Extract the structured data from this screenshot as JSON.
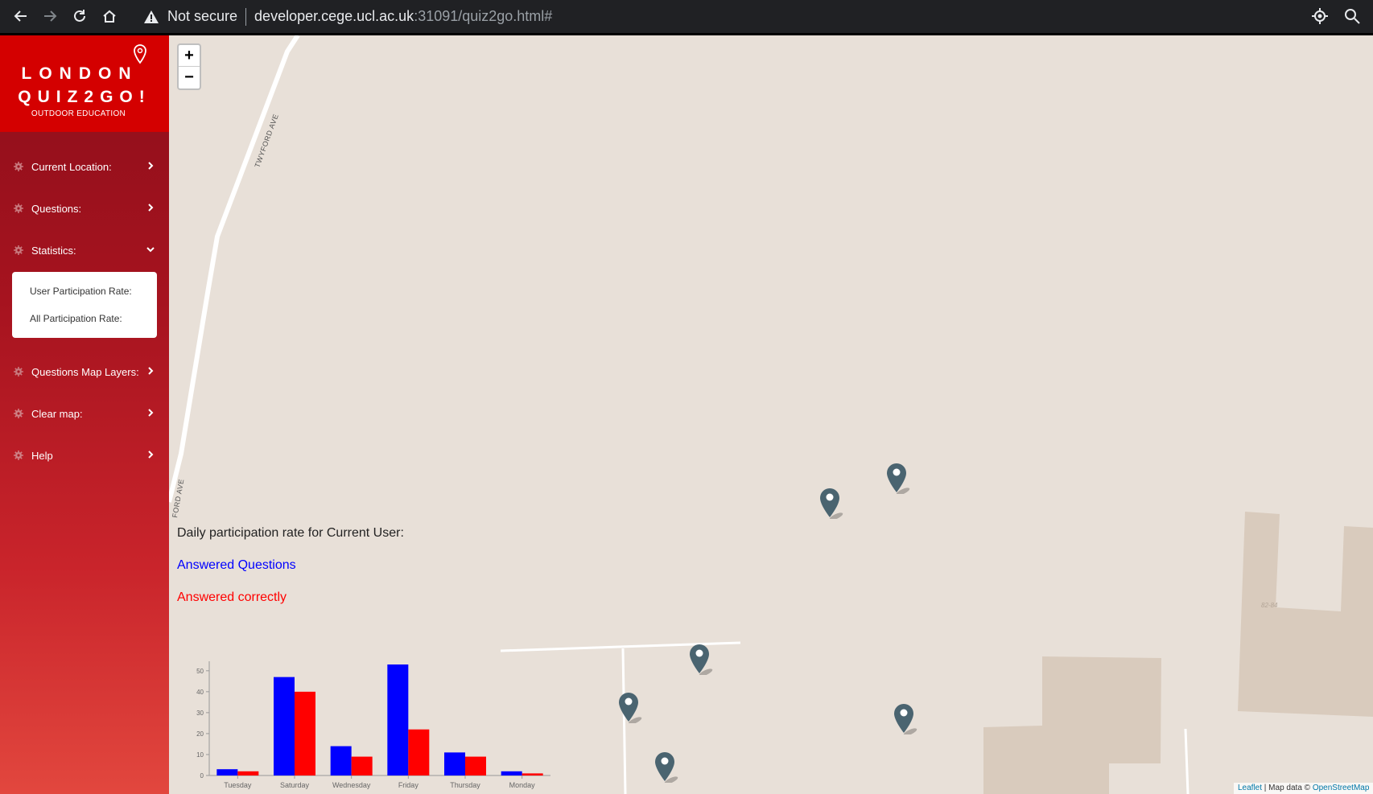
{
  "browser": {
    "security_label": "Not secure",
    "url_host": "developer.cege.ucl.ac.uk",
    "url_path": ":31091/quiz2go.html#"
  },
  "logo": {
    "line1": "LONDON",
    "line2": "QUIZ2GO!",
    "subtitle": "OUTDOOR EDUCATION"
  },
  "menu": {
    "current_location": "Current Location:",
    "questions": "Questions:",
    "statistics": "Statistics:",
    "user_participation": "User Participation Rate:",
    "all_participation": "All Participation Rate:",
    "map_layers": "Questions Map Layers:",
    "clear_map": "Clear map:",
    "help": "Help"
  },
  "map": {
    "zoom_in": "+",
    "zoom_out": "−",
    "road_label_1": "TWYFORD AVE",
    "road_label_2": "FORD AVE",
    "building_label": "82-84",
    "attribution_leaflet": "Leaflet",
    "attribution_text": " | Map data © ",
    "attribution_osm": "OpenStreetMap"
  },
  "stats": {
    "title": "Daily participation rate for Current User:",
    "legend_answered": "Answered Questions",
    "legend_correct": "Answered correctly"
  },
  "chart_data": {
    "type": "bar",
    "categories": [
      "Tuesday",
      "Saturday",
      "Wednesday",
      "Friday",
      "Thursday",
      "Monday"
    ],
    "series": [
      {
        "name": "Answered Questions",
        "color": "#0000ff",
        "values": [
          3,
          47,
          14,
          53,
          11,
          2
        ]
      },
      {
        "name": "Answered correctly",
        "color": "#ff0000",
        "values": [
          2,
          40,
          9,
          22,
          9,
          1
        ]
      }
    ],
    "yticks": [
      0,
      10,
      20,
      30,
      40,
      50
    ],
    "ylim": [
      0,
      53
    ]
  }
}
